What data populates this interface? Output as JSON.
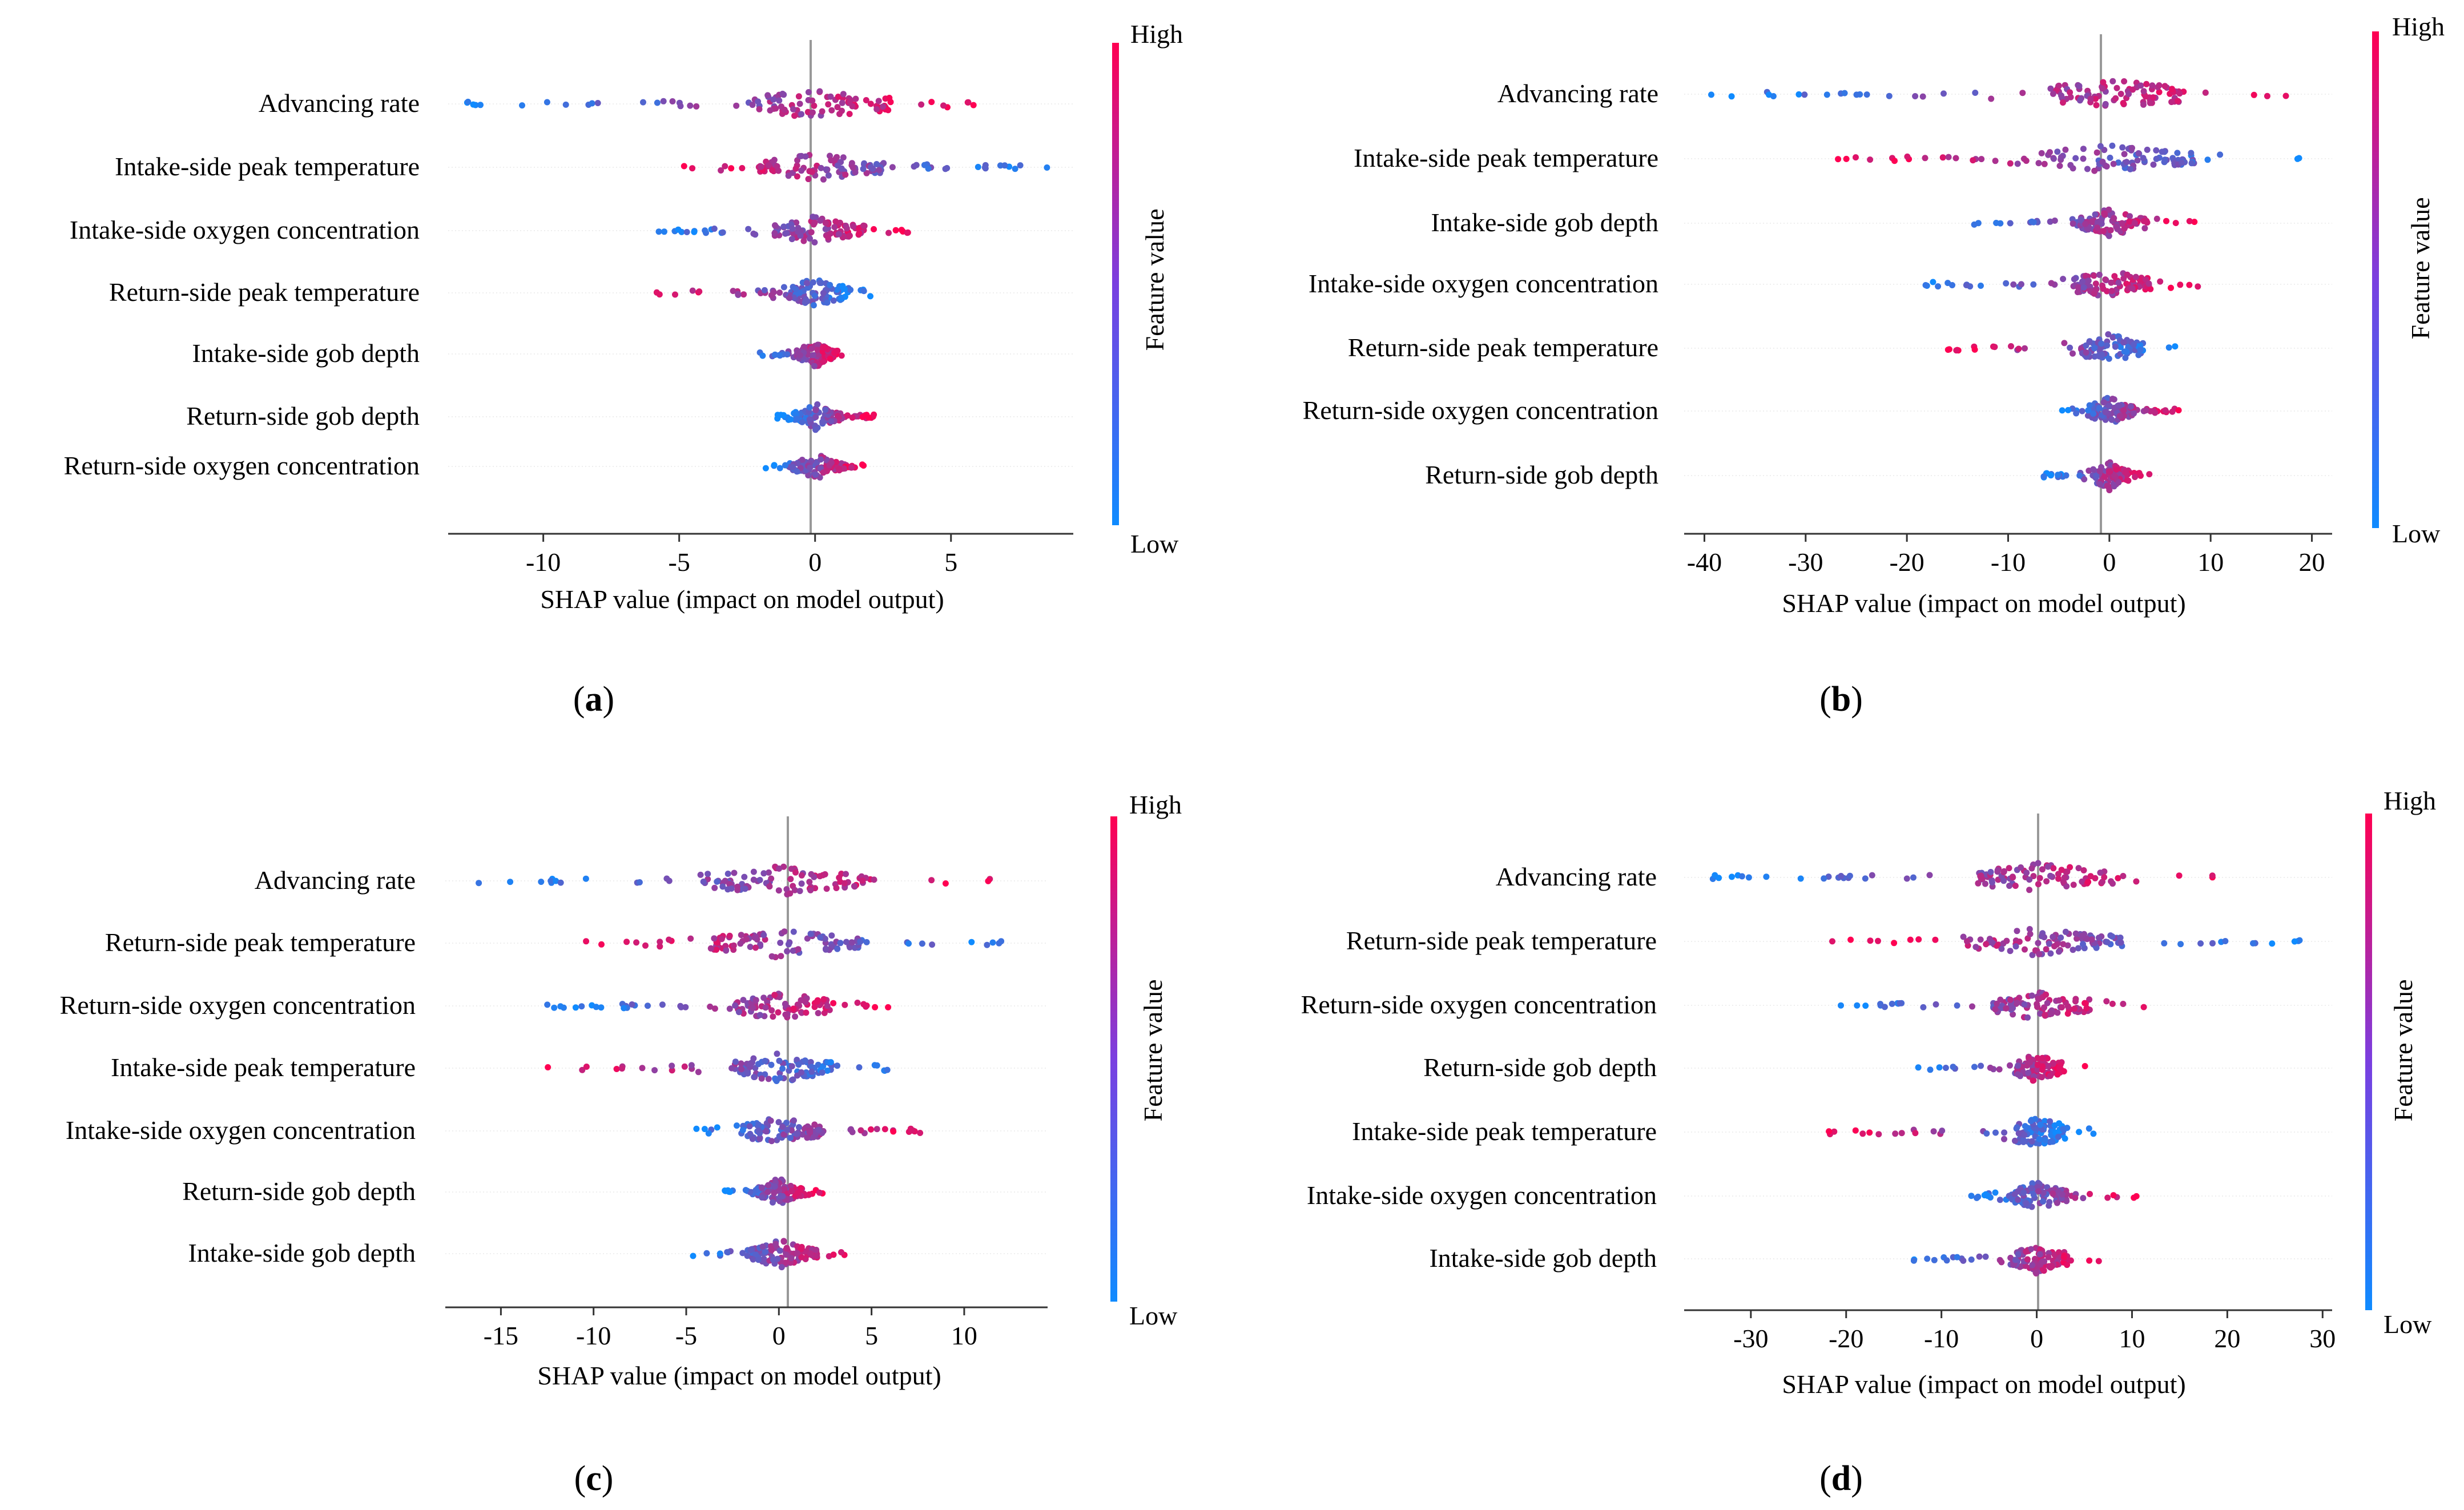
{
  "colors": {
    "low": "#0f8bff",
    "high": "#ff0052",
    "axis": "#333333",
    "grid": "#cccccc"
  },
  "colorbar": {
    "high_label": "High",
    "low_label": "Low",
    "title": "Feature value"
  },
  "chart_data": [
    {
      "type": "beeswarm",
      "panel_label": "a",
      "xlabel": "SHAP value (impact on model output)",
      "xlim": [
        -13.5,
        9.5
      ],
      "xticks": [
        -10,
        -5,
        0,
        5
      ],
      "features": [
        "Advancing rate",
        "Intake-side peak temperature",
        "Intake-side oxygen concentration",
        "Return-side peak temperature",
        "Intake-side gob depth",
        "Return-side gob depth",
        "Return-side oxygen concentration"
      ],
      "shap_ranges": [
        [
          -12.8,
          6.5
        ],
        [
          -5.3,
          8.8
        ],
        [
          -5.8,
          3.6
        ],
        [
          -5.9,
          2.2
        ],
        [
          -2.1,
          1.0
        ],
        [
          -1.4,
          2.2
        ],
        [
          -1.9,
          1.8
        ]
      ],
      "low_color_side": [
        "left",
        "right",
        "left",
        "right",
        "left",
        "left",
        "left"
      ]
    },
    {
      "type": "beeswarm",
      "panel_label": "b",
      "xlabel": "SHAP value (impact on model output)",
      "xlim": [
        -42,
        22
      ],
      "xticks": [
        -40,
        -30,
        -20,
        -10,
        0,
        10,
        20
      ],
      "features": [
        "Advancing rate",
        "Intake-side peak temperature",
        "Intake-side gob depth",
        "Intake-side oxygen concentration",
        "Return-side peak temperature",
        "Return-side oxygen concentration",
        "Return-side gob depth"
      ],
      "shap_ranges": [
        [
          -39.5,
          17.5
        ],
        [
          -27.5,
          20.0
        ],
        [
          -14.0,
          8.5
        ],
        [
          -18.5,
          10.0
        ],
        [
          -16.5,
          7.5
        ],
        [
          -5.0,
          7.0
        ],
        [
          -6.5,
          4.0
        ]
      ],
      "low_color_side": [
        "left",
        "right",
        "left",
        "left",
        "right",
        "left",
        "left"
      ]
    },
    {
      "type": "beeswarm",
      "panel_label": "c",
      "xlabel": "SHAP value (impact on model output)",
      "xlim": [
        -18,
        14.5
      ],
      "xticks": [
        -15,
        -10,
        -5,
        0,
        5,
        10
      ],
      "features": [
        "Advancing rate",
        "Return-side peak temperature",
        "Return-side oxygen concentration",
        "Intake-side peak temperature",
        "Intake-side oxygen concentration",
        "Return-side gob depth",
        "Intake-side gob depth"
      ],
      "shap_ranges": [
        [
          -16.5,
          12.0
        ],
        [
          -10.5,
          13.5
        ],
        [
          -12.5,
          6.0
        ],
        [
          -12.5,
          6.2
        ],
        [
          -5.0,
          8.2
        ],
        [
          -3.0,
          2.5
        ],
        [
          -5.0,
          4.2
        ]
      ],
      "low_color_side": [
        "left",
        "right",
        "left",
        "right",
        "left",
        "left",
        "left"
      ]
    },
    {
      "type": "beeswarm",
      "panel_label": "d",
      "xlabel": "SHAP value (impact on model output)",
      "xlim": [
        -37,
        31
      ],
      "xticks": [
        -30,
        -20,
        -10,
        0,
        10,
        20,
        30
      ],
      "features": [
        "Advancing rate",
        "Return-side peak temperature",
        "Return-side oxygen concentration",
        "Return-side gob depth",
        "Intake-side peak temperature",
        "Intake-side oxygen concentration",
        "Intake-side gob depth"
      ],
      "shap_ranges": [
        [
          -34.5,
          19.0
        ],
        [
          -22.0,
          28.0
        ],
        [
          -22.0,
          13.0
        ],
        [
          -12.5,
          5.5
        ],
        [
          -22.0,
          6.0
        ],
        [
          -7.0,
          11.0
        ],
        [
          -13.0,
          7.0
        ]
      ],
      "low_color_side": [
        "left",
        "right",
        "left",
        "left",
        "right",
        "left",
        "left"
      ]
    }
  ]
}
